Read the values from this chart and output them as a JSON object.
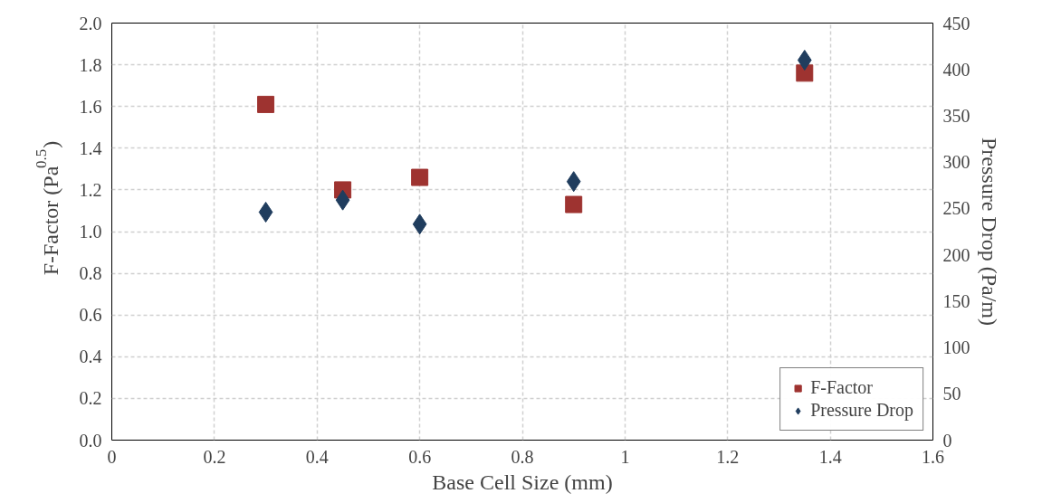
{
  "chart_data": {
    "type": "scatter",
    "xlabel": "Base Cell Size (mm)",
    "ylabel": "F-Factor (Pa$^{0.5}$)",
    "y2label": "Pressure Drop (Pa/m)",
    "x": [
      0.3,
      0.45,
      0.6,
      0.9,
      1.35
    ],
    "series": [
      {
        "name": "F-Factor",
        "color": "#9e3330",
        "marker": "square",
        "values": [
          1.61,
          1.2,
          1.26,
          1.13,
          1.76
        ]
      },
      {
        "name": "Pressure Drop",
        "color": "#203d5e",
        "marker": "diamond",
        "axis": "y2",
        "values": [
          246,
          259,
          233,
          279,
          410
        ]
      }
    ],
    "xlim": [
      0,
      1.6
    ],
    "xticks": [
      0,
      0.2,
      0.4,
      0.6,
      0.8,
      1,
      1.2,
      1.4,
      1.6
    ],
    "ylim": [
      0,
      2.0
    ],
    "yticks": [
      {
        "value": 0,
        "label": "0.0"
      },
      0.2,
      0.4,
      0.6,
      0.8,
      {
        "value": 1,
        "label": "1.0"
      },
      1.2,
      1.4,
      1.6,
      1.8,
      {
        "value": 2,
        "label": "2.0"
      }
    ],
    "y2lim": [
      0,
      450
    ],
    "y2ticks": [
      0,
      50,
      100,
      150,
      200,
      250,
      300,
      350,
      400,
      450
    ],
    "grid": true,
    "legend": "bottom right"
  }
}
